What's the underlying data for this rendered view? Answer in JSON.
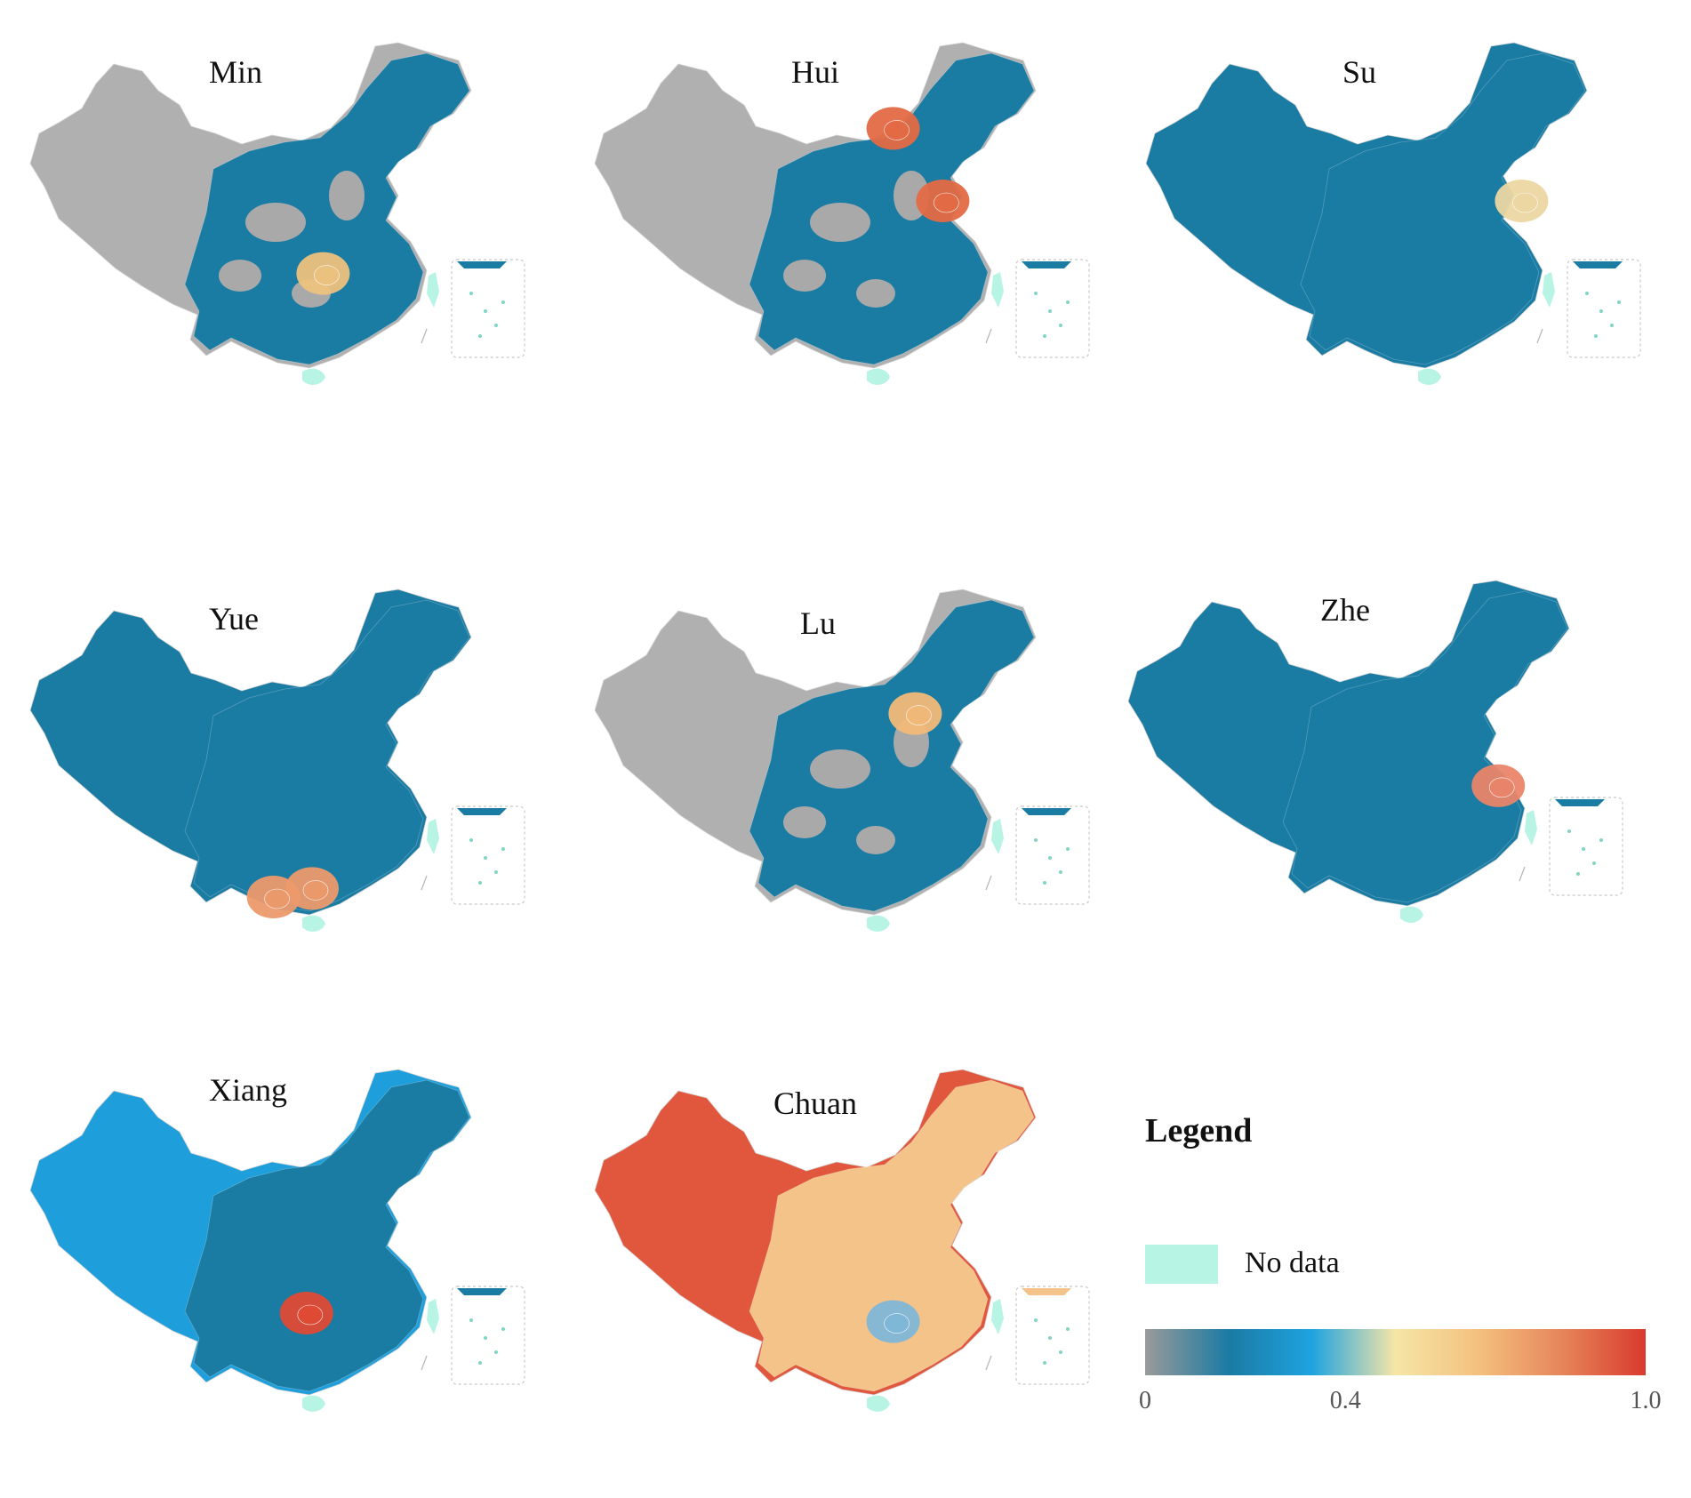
{
  "map_data": {
    "type": "choropleth",
    "region": "China",
    "panels": [
      {
        "title": "Min",
        "highlight": "#ecc27e",
        "interior": "#1a7ba3",
        "outer": "#b0b0b0",
        "hot": [
          [
            0.57,
            0.62
          ]
        ]
      },
      {
        "title": "Hui",
        "highlight": "#e46a45",
        "interior": "#1a7ba3",
        "outer": "#b0b0b0",
        "hot": [
          [
            0.67,
            0.45
          ],
          [
            0.58,
            0.28
          ]
        ]
      },
      {
        "title": "Su",
        "highlight": "#ecd7a3",
        "interior": "#1a7ba3",
        "outer": "#1a7ba3",
        "hot": [
          [
            0.72,
            0.45
          ]
        ]
      },
      {
        "title": "Yue",
        "highlight": "#ec9a6b",
        "interior": "#1a7ba3",
        "outer": "#1a7ba3",
        "hot": [
          [
            0.55,
            0.78
          ],
          [
            0.48,
            0.8
          ]
        ]
      },
      {
        "title": "Lu",
        "highlight": "#f2b978",
        "interior": "#1a7ba3",
        "outer": "#b0b0b0",
        "hot": [
          [
            0.62,
            0.37
          ]
        ]
      },
      {
        "title": "Zhe",
        "highlight": "#e9856a",
        "interior": "#1a7ba3",
        "outer": "#1a7ba3",
        "hot": [
          [
            0.71,
            0.56
          ]
        ]
      },
      {
        "title": "Xiang",
        "highlight": "#e04a35",
        "interior": "#1a7ba3",
        "outer": "#1e9fdc",
        "hot": [
          [
            0.54,
            0.65
          ]
        ]
      },
      {
        "title": "Chuan",
        "highlight": "#7fb7d8",
        "interior": "#f3c38a",
        "outer": "#e0573d",
        "hot": [
          [
            0.58,
            0.67
          ]
        ]
      }
    ],
    "legend": {
      "title": "Legend",
      "no_data_label": "No data",
      "no_data_color": "#b8f4e4",
      "ticks": [
        "0",
        "0.4",
        "1.0"
      ],
      "tick_values": [
        0,
        0.4,
        1.0
      ],
      "range": [
        0,
        1.0
      ],
      "colors": [
        "#9a9a9a",
        "#1a7ba3",
        "#1ea3e0",
        "#f5e6a6",
        "#f4c07e",
        "#e6855a",
        "#d93a2e"
      ]
    }
  }
}
